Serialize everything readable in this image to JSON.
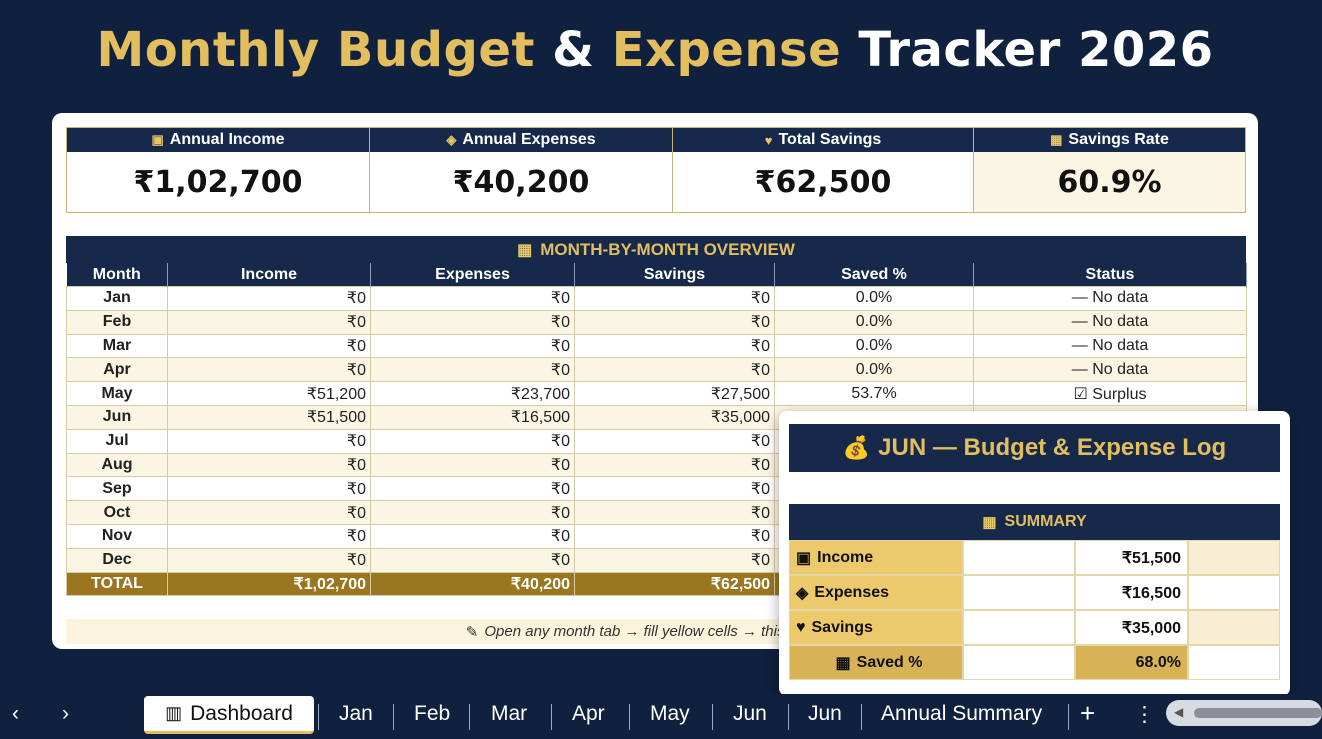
{
  "title": {
    "part1": "Monthly Budget",
    "amp": "&",
    "part2": "Expense",
    "part3": "Tracker 2026"
  },
  "kpis": [
    {
      "label": "Annual Income",
      "value": "₹1,02,700",
      "icon": "money-icon"
    },
    {
      "label": "Annual Expenses",
      "value": "₹40,200",
      "icon": "shopping-icon"
    },
    {
      "label": "Total Savings",
      "value": "₹62,500",
      "icon": "heart-icon"
    },
    {
      "label": "Savings Rate",
      "value": "60.9%",
      "icon": "box-icon"
    }
  ],
  "overview": {
    "title": "MONTH-BY-MONTH OVERVIEW",
    "headers": [
      "Month",
      "Income",
      "Expenses",
      "Savings",
      "Saved %",
      "Status"
    ],
    "rows": [
      [
        "Jan",
        "₹0",
        "₹0",
        "₹0",
        "0.0%",
        "— No data"
      ],
      [
        "Feb",
        "₹0",
        "₹0",
        "₹0",
        "0.0%",
        "— No data"
      ],
      [
        "Mar",
        "₹0",
        "₹0",
        "₹0",
        "0.0%",
        "— No data"
      ],
      [
        "Apr",
        "₹0",
        "₹0",
        "₹0",
        "0.0%",
        "— No data"
      ],
      [
        "May",
        "₹51,200",
        "₹23,700",
        "₹27,500",
        "53.7%",
        "☑ Surplus"
      ],
      [
        "Jun",
        "₹51,500",
        "₹16,500",
        "₹35,000",
        "",
        ""
      ],
      [
        "Jul",
        "₹0",
        "₹0",
        "₹0",
        "",
        ""
      ],
      [
        "Aug",
        "₹0",
        "₹0",
        "₹0",
        "",
        ""
      ],
      [
        "Sep",
        "₹0",
        "₹0",
        "₹0",
        "",
        ""
      ],
      [
        "Oct",
        "₹0",
        "₹0",
        "₹0",
        "",
        ""
      ],
      [
        "Nov",
        "₹0",
        "₹0",
        "₹0",
        "",
        ""
      ],
      [
        "Dec",
        "₹0",
        "₹0",
        "₹0",
        "",
        ""
      ]
    ],
    "total": [
      "TOTAL",
      "₹1,02,700",
      "₹40,200",
      "₹62,500",
      "",
      ""
    ],
    "tip": "Open any month tab → fill yellow cells → this dashboa"
  },
  "popup": {
    "title": "JUN — Budget & Expense Log",
    "summary_title": "SUMMARY",
    "rows": [
      {
        "label": "Income",
        "value": "₹51,500",
        "icon": "money-icon"
      },
      {
        "label": "Expenses",
        "value": "₹16,500",
        "icon": "shopping-icon"
      },
      {
        "label": "Savings",
        "value": "₹35,000",
        "icon": "heart-icon"
      },
      {
        "label": "Saved %",
        "value": "68.0%",
        "icon": "box-icon"
      }
    ]
  },
  "tabs": {
    "active": "Dashboard",
    "items": [
      "Jan",
      "Feb",
      "Mar",
      "Apr",
      "May",
      "Jun",
      "Jun",
      "Annual Summary"
    ]
  },
  "colors": {
    "navy": "#10203f",
    "header": "#16294b",
    "gold": "#e2be5f",
    "total": "#9a7620"
  }
}
